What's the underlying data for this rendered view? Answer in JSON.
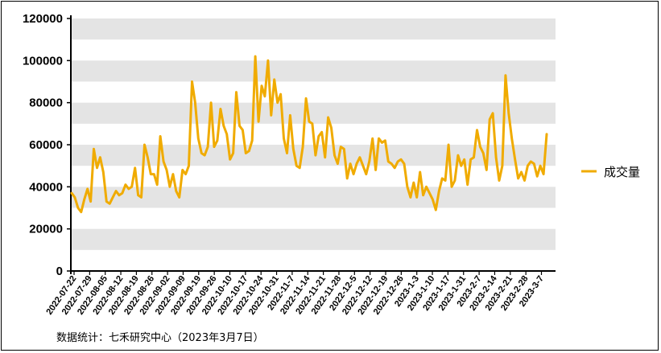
{
  "chart_data": {
    "type": "line",
    "ylim": [
      0,
      120000
    ],
    "yticks": [
      "0",
      "20000",
      "40000",
      "60000",
      "80000",
      "100000",
      "120000"
    ],
    "x_tick_labels": [
      "2022-07-22",
      "2022-07-29",
      "2022-08-05",
      "2022-08-12",
      "2022-08-19",
      "2022-08-26",
      "2022-09-02",
      "2022-09-09",
      "2022-09-19",
      "2022-09-26",
      "2022-10-10",
      "2022-10-17",
      "2022-10-24",
      "2022-10-31",
      "2022-11-7",
      "2022-11-14",
      "2022-11-21",
      "2022-11-28",
      "2022-12-5",
      "2022-12-12",
      "2022-12-19",
      "2022-12-26",
      "2023-1-3",
      "2023-1-10",
      "2023-1-17",
      "2023-1-31",
      "2023-2-7",
      "2023-2-14",
      "2023-2-21",
      "2023-2-28",
      "2023-3-7"
    ],
    "legend_position": "right",
    "grid": "horizontal-bands",
    "series": [
      {
        "name": "成交量",
        "color": "#f0ab00",
        "values": [
          37000,
          35000,
          30000,
          28000,
          34000,
          39000,
          33000,
          58000,
          49000,
          54000,
          47000,
          33000,
          32000,
          35000,
          38000,
          36000,
          37000,
          41000,
          39000,
          40000,
          49000,
          36000,
          35000,
          60000,
          54000,
          46000,
          46000,
          41000,
          64000,
          52000,
          48000,
          40000,
          46000,
          38000,
          35000,
          48000,
          46000,
          50000,
          90000,
          80000,
          63000,
          56000,
          55000,
          59000,
          80000,
          59000,
          62000,
          77000,
          69000,
          65000,
          53000,
          56000,
          85000,
          69000,
          67000,
          56000,
          57000,
          62000,
          102000,
          71000,
          88000,
          83000,
          100000,
          74000,
          91000,
          80000,
          84000,
          63000,
          56000,
          74000,
          58000,
          50000,
          49000,
          59000,
          82000,
          71000,
          70000,
          55000,
          64000,
          66000,
          54000,
          73000,
          68000,
          55000,
          51000,
          59000,
          58000,
          44000,
          51000,
          46000,
          51000,
          54000,
          50000,
          46000,
          52000,
          63000,
          48000,
          63000,
          61000,
          62000,
          52000,
          51000,
          49000,
          52000,
          53000,
          51000,
          40000,
          35000,
          42000,
          35000,
          47000,
          36000,
          40000,
          37000,
          34000,
          29000,
          38000,
          44000,
          43000,
          60000,
          40000,
          43000,
          55000,
          50000,
          53000,
          41000,
          53000,
          54000,
          67000,
          59000,
          56000,
          48000,
          72000,
          75000,
          54000,
          43000,
          50000,
          93000,
          75000,
          63000,
          53000,
          44000,
          47000,
          43000,
          50000,
          52000,
          51000,
          45000,
          50000,
          46000,
          65000
        ]
      }
    ],
    "source": "数据统计：七禾研究中心（2023年3月7日）"
  }
}
